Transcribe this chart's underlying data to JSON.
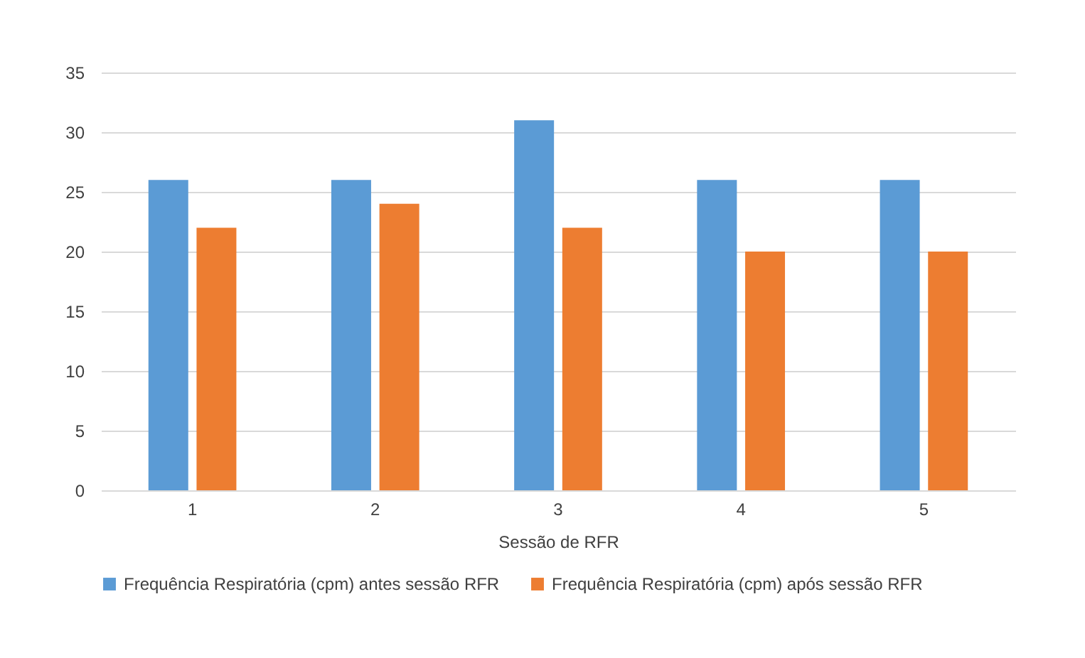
{
  "chart_data": {
    "type": "bar",
    "xlabel": "Sessão de RFR",
    "categories": [
      "1",
      "2",
      "3",
      "4",
      "5"
    ],
    "series": [
      {
        "name": "Frequência Respiratória (cpm) antes sessão RFR",
        "color": "#5b9bd5",
        "values": [
          26,
          26,
          31,
          26,
          26
        ]
      },
      {
        "name": "Frequência Respiratória (cpm) após sessão RFR",
        "color": "#ed7d31",
        "values": [
          22,
          24,
          22,
          20,
          20
        ]
      }
    ],
    "ylim": [
      0,
      35
    ],
    "yticks": [
      0,
      5,
      10,
      15,
      20,
      25,
      30,
      35
    ],
    "grid": "y",
    "legend": "bottom"
  }
}
